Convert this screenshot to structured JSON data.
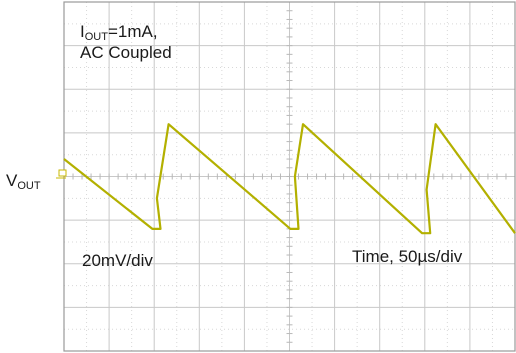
{
  "annotations": {
    "condition_line1_main": "I",
    "condition_line1_sub": "OUT",
    "condition_line1_rest": "=1mA,",
    "condition_line2": "AC Coupled",
    "vertical_scale": "20mV/div",
    "time_scale": "Time, 50µs/div",
    "channel_label_main": "V",
    "channel_label_sub": "OUT"
  },
  "colors": {
    "trace": "#b3b000",
    "grid": "#c8c8c8",
    "marker": "#c9b800"
  },
  "chart_data": {
    "type": "line",
    "title": "",
    "xlabel": "Time, 50µs/div",
    "ylabel": "20mV/div",
    "grid": true,
    "xlim": [
      0,
      500
    ],
    "ylim": [
      -80,
      80
    ],
    "series": [
      {
        "values_x": [
          0,
          98,
          107,
          103,
          116,
          251,
          260,
          256,
          265,
          397,
          406,
          402,
          412,
          500
        ],
        "values_y": [
          8,
          -24,
          -24,
          -10,
          24,
          -24,
          -24,
          0,
          24,
          -26,
          -26,
          -6,
          24,
          -26
        ]
      }
    ]
  }
}
